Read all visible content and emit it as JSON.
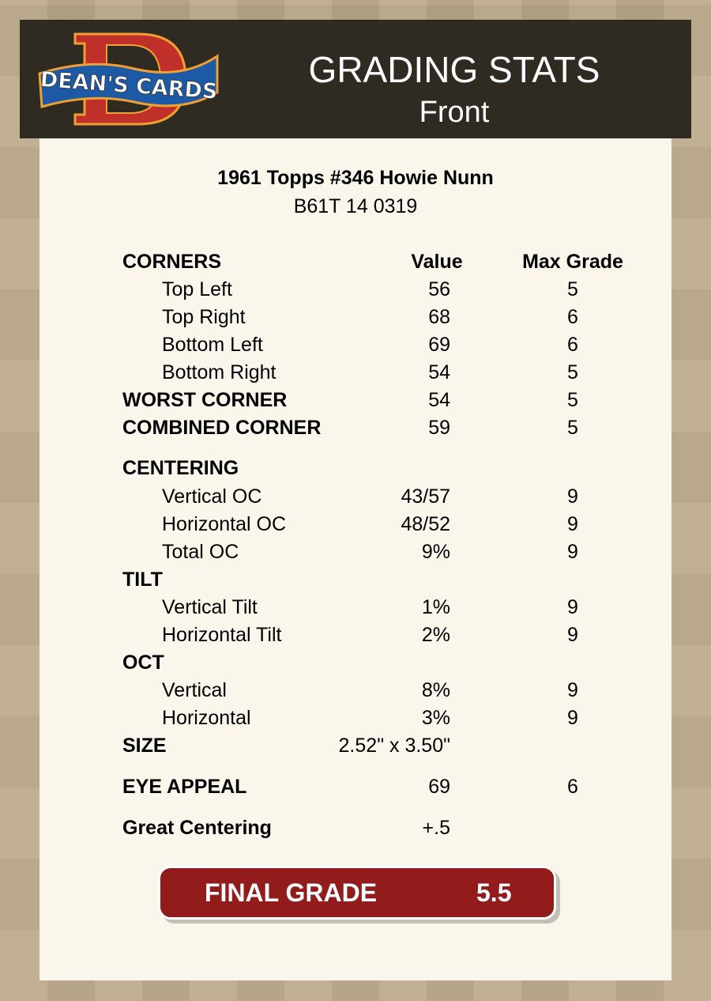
{
  "header": {
    "logo_text": "DEAN'S CARDS",
    "title": "GRADING STATS",
    "subtitle": "Front"
  },
  "card": {
    "name": "1961 Topps #346 Howie Nunn",
    "code": "B61T 14 0319"
  },
  "columns": {
    "value": "Value",
    "max_grade": "Max Grade"
  },
  "corners": {
    "label": "CORNERS",
    "top_left": {
      "label": "Top Left",
      "value": "56",
      "max": "5"
    },
    "top_right": {
      "label": "Top Right",
      "value": "68",
      "max": "6"
    },
    "bottom_left": {
      "label": "Bottom Left",
      "value": "69",
      "max": "6"
    },
    "bottom_right": {
      "label": "Bottom Right",
      "value": "54",
      "max": "5"
    },
    "worst": {
      "label": "WORST CORNER",
      "value": "54",
      "max": "5"
    },
    "combined": {
      "label": "COMBINED CORNER",
      "value": "59",
      "max": "5"
    }
  },
  "centering": {
    "label": "CENTERING",
    "vertical": {
      "label": "Vertical OC",
      "value": "43/57",
      "max": "9"
    },
    "horizontal": {
      "label": "Horizontal OC",
      "value": "48/52",
      "max": "9"
    },
    "total": {
      "label": "Total OC",
      "value": "9%",
      "max": "9"
    }
  },
  "tilt": {
    "label": "TILT",
    "vertical": {
      "label": "Vertical Tilt",
      "value": "1%",
      "max": "9"
    },
    "horizontal": {
      "label": "Horizontal Tilt",
      "value": "2%",
      "max": "9"
    }
  },
  "oct": {
    "label": "OCT",
    "vertical": {
      "label": "Vertical",
      "value": "8%",
      "max": "9"
    },
    "horizontal": {
      "label": "Horizontal",
      "value": "3%",
      "max": "9"
    }
  },
  "size": {
    "label": "SIZE",
    "value": "2.52\" x 3.50\""
  },
  "eye_appeal": {
    "label": "EYE APPEAL",
    "value": "69",
    "max": "6"
  },
  "bonus": {
    "label": "Great Centering",
    "value": "+.5"
  },
  "final": {
    "label": "FINAL GRADE",
    "value": "5.5"
  },
  "colors": {
    "header_bg": "#2f2a22",
    "card_bg": "#fbf6ec",
    "final_bg": "#921b1c"
  }
}
